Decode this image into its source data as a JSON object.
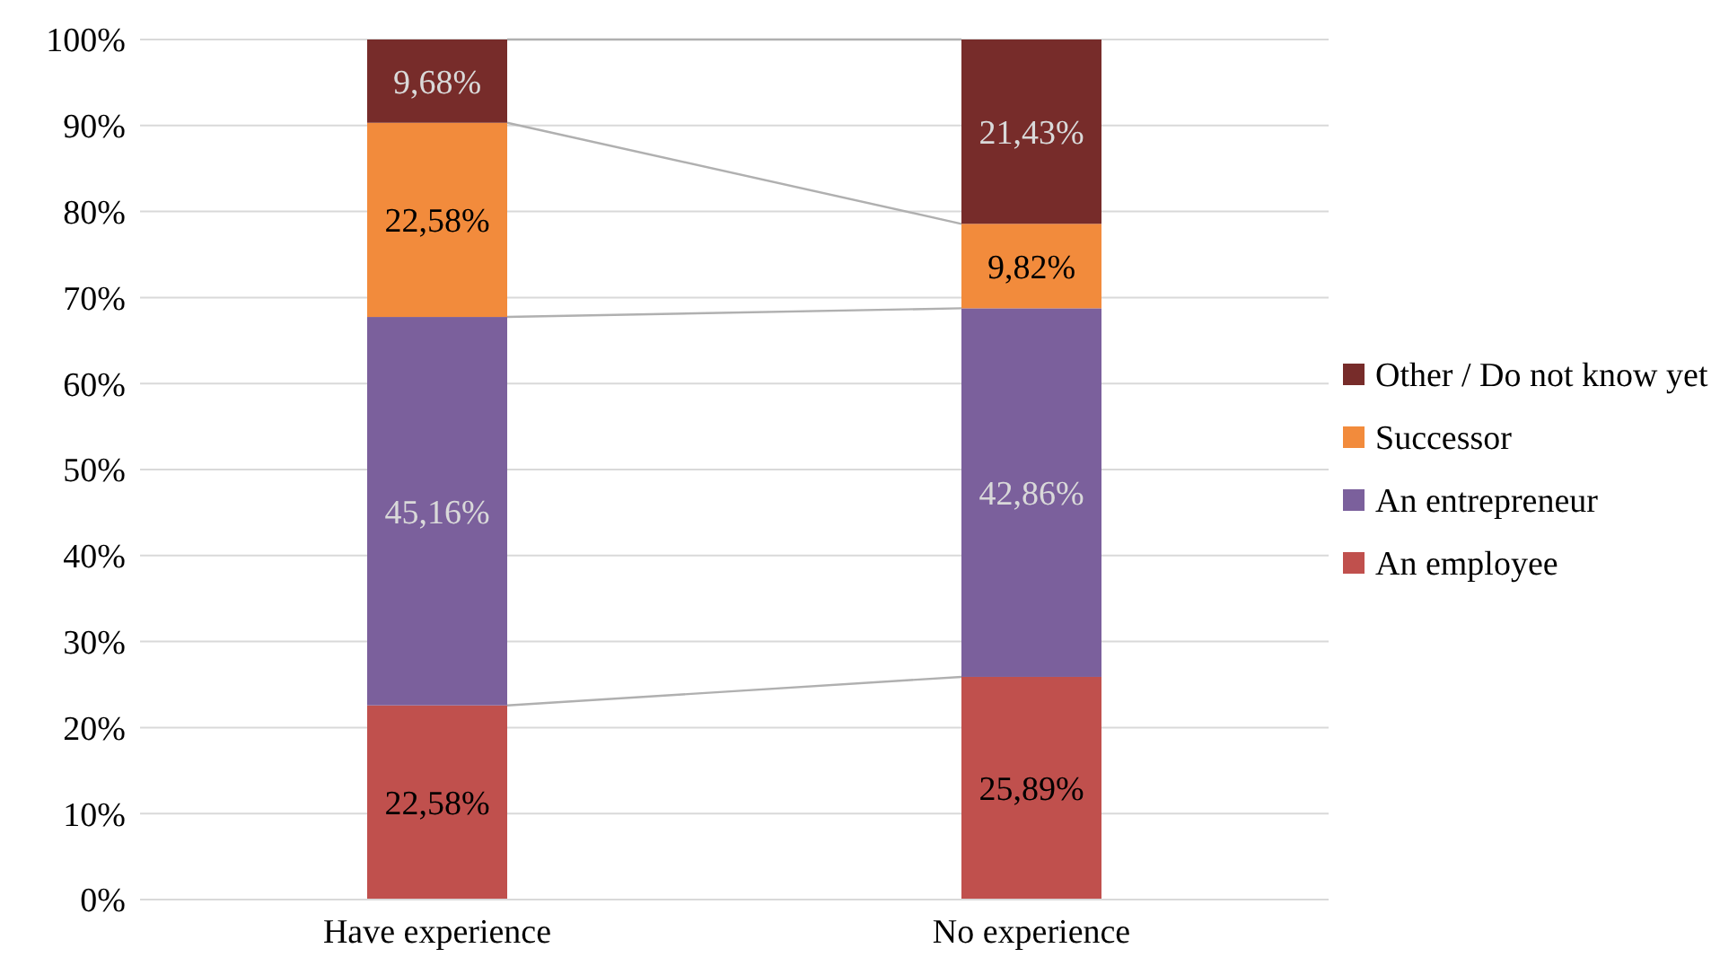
{
  "chart_data": {
    "type": "bar",
    "stacked": true,
    "categories": [
      "Have experience",
      "No experience"
    ],
    "series": [
      {
        "name": "An employee",
        "color": "#c0504d",
        "values": [
          22.58,
          25.89
        ],
        "value_labels": [
          "22,58%",
          "25,89%"
        ]
      },
      {
        "name": "An entrepreneur",
        "color": "#7b609c",
        "values": [
          45.16,
          42.86
        ],
        "value_labels": [
          "45,16%",
          "42,86%"
        ]
      },
      {
        "name": "Successor",
        "color": "#f28b3c",
        "values": [
          22.58,
          9.82
        ],
        "value_labels": [
          "22,58%",
          "9,82%"
        ]
      },
      {
        "name": "Other / Do not know yet",
        "color": "#772c2a",
        "values": [
          9.68,
          21.43
        ],
        "value_labels": [
          "9,68%",
          "21,43%"
        ]
      }
    ],
    "ylim": [
      0,
      100
    ],
    "yticks": [
      {
        "value": 0,
        "label": "0%"
      },
      {
        "value": 10,
        "label": "10%"
      },
      {
        "value": 20,
        "label": "20%"
      },
      {
        "value": 30,
        "label": "30%"
      },
      {
        "value": 40,
        "label": "40%"
      },
      {
        "value": 50,
        "label": "50%"
      },
      {
        "value": 60,
        "label": "60%"
      },
      {
        "value": 70,
        "label": "70%"
      },
      {
        "value": 80,
        "label": "80%"
      },
      {
        "value": 90,
        "label": "90%"
      },
      {
        "value": 100,
        "label": "100%"
      }
    ],
    "grid": "y",
    "legend": "right"
  }
}
